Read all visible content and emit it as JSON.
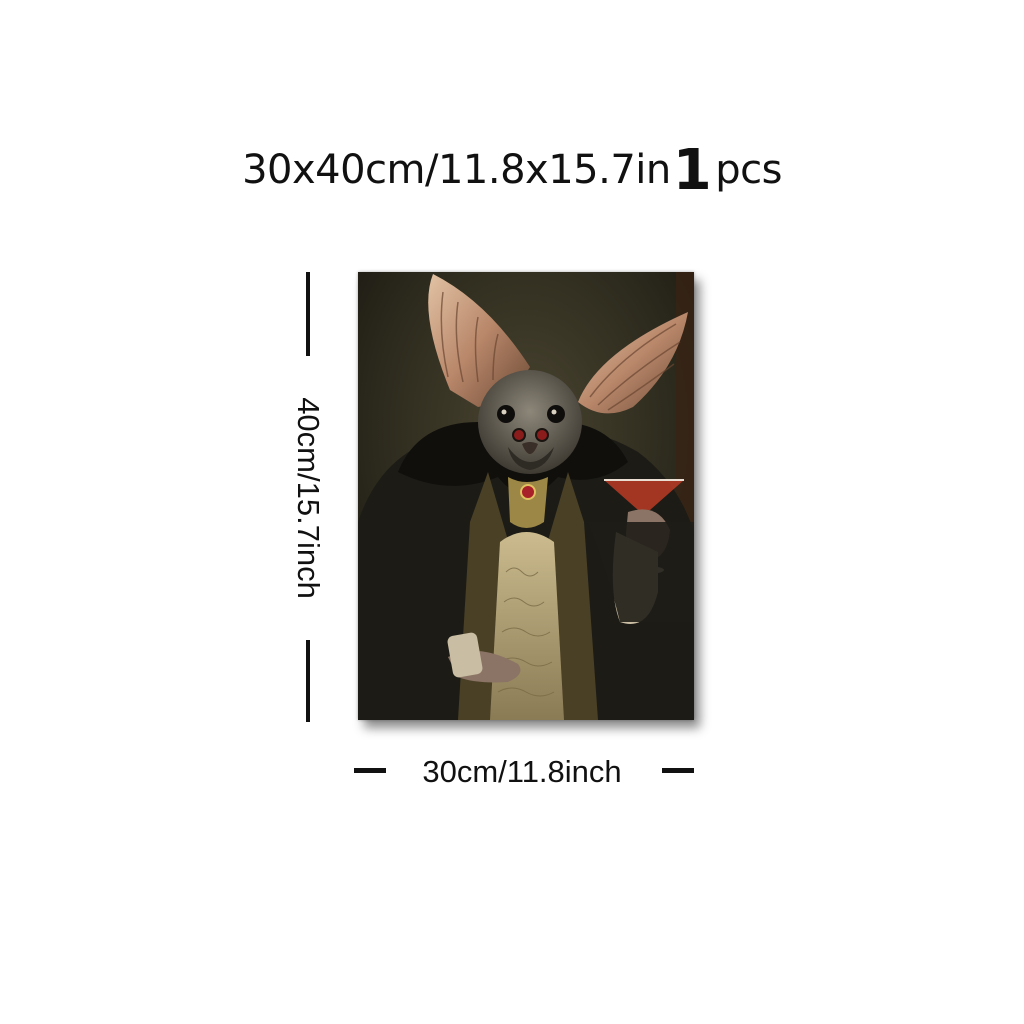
{
  "header": {
    "size_text": "30x40cm/11.8x15.7in",
    "quantity_number": "1",
    "quantity_unit": "pcs"
  },
  "dimensions": {
    "height_label": "40cm/15.7inch",
    "width_label": "30cm/11.8inch"
  },
  "product": {
    "image_subject": "bat-gentleman-portrait-painting",
    "colors": {
      "background_dark": "#2a261c",
      "coat": "#1b1a16",
      "vest": "#b6a57c",
      "ear": "#c79f7e",
      "wine": "#b23a24"
    }
  }
}
